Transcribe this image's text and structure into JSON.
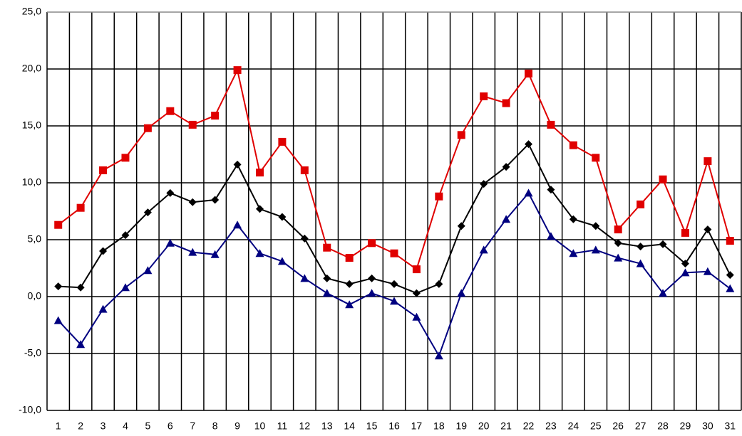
{
  "chart_data": {
    "type": "line",
    "categories": [
      "1",
      "2",
      "3",
      "4",
      "5",
      "6",
      "7",
      "8",
      "9",
      "10",
      "11",
      "12",
      "13",
      "14",
      "15",
      "16",
      "17",
      "18",
      "19",
      "20",
      "21",
      "22",
      "23",
      "24",
      "25",
      "26",
      "27",
      "28",
      "29",
      "30",
      "31"
    ],
    "series": [
      {
        "color": "#e00000",
        "marker": "square",
        "values": [
          6.3,
          7.8,
          11.1,
          12.2,
          14.8,
          16.3,
          15.1,
          15.9,
          19.9,
          10.9,
          13.6,
          11.1,
          4.3,
          3.4,
          4.7,
          3.8,
          2.4,
          8.8,
          14.2,
          17.6,
          17.0,
          19.6,
          15.1,
          13.3,
          12.2,
          5.9,
          8.1,
          10.3,
          5.6,
          11.9,
          4.9
        ]
      },
      {
        "color": "#000000",
        "marker": "diamond",
        "values": [
          0.9,
          0.8,
          4.0,
          5.4,
          7.4,
          9.1,
          8.3,
          8.5,
          11.6,
          7.7,
          7.0,
          5.1,
          1.6,
          1.1,
          1.6,
          1.1,
          0.3,
          1.1,
          6.2,
          9.9,
          11.4,
          13.4,
          9.4,
          6.8,
          6.2,
          4.7,
          4.4,
          4.6,
          2.9,
          5.9,
          1.9
        ]
      },
      {
        "color": "#000080",
        "marker": "triangle",
        "values": [
          -2.1,
          -4.2,
          -1.1,
          0.8,
          2.3,
          4.7,
          3.9,
          3.7,
          6.3,
          3.8,
          3.1,
          1.6,
          0.3,
          -0.7,
          0.3,
          -0.4,
          -1.8,
          -5.2,
          0.3,
          4.1,
          6.8,
          9.1,
          5.3,
          3.8,
          4.1,
          3.4,
          2.9,
          0.3,
          2.1,
          2.2,
          0.7
        ]
      }
    ],
    "ylim": [
      -10,
      25
    ],
    "yticks": [
      {
        "value": -10,
        "label": "-10,0"
      },
      {
        "value": -5,
        "label": "-5,0"
      },
      {
        "value": 0,
        "label": "0,0"
      },
      {
        "value": 5,
        "label": "5,0"
      },
      {
        "value": 10,
        "label": "10,0"
      },
      {
        "value": 15,
        "label": "15,0"
      },
      {
        "value": 20,
        "label": "20,0"
      },
      {
        "value": 25,
        "label": "25,0"
      }
    ],
    "grid": true
  }
}
